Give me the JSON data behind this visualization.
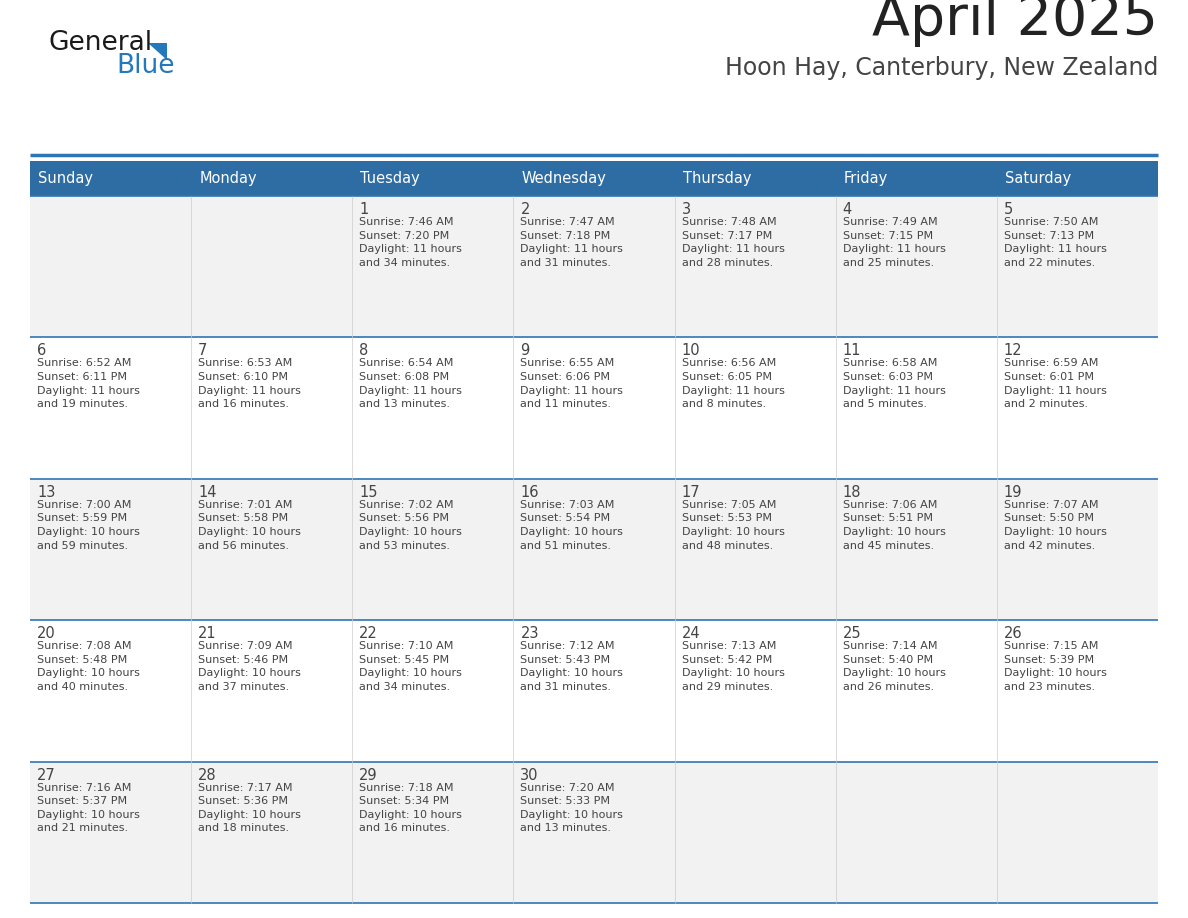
{
  "title": "April 2025",
  "subtitle": "Hoon Hay, Canterbury, New Zealand",
  "header_bg_color": "#2E6DA4",
  "header_text_color": "#FFFFFF",
  "title_color": "#222222",
  "subtitle_color": "#444444",
  "text_color": "#444444",
  "line_color": "#2E75B6",
  "logo_black": "#1a1a1a",
  "logo_blue": "#2479BD",
  "day_headers": [
    "Sunday",
    "Monday",
    "Tuesday",
    "Wednesday",
    "Thursday",
    "Friday",
    "Saturday"
  ],
  "weeks": [
    [
      {
        "day": "",
        "info": ""
      },
      {
        "day": "",
        "info": ""
      },
      {
        "day": "1",
        "info": "Sunrise: 7:46 AM\nSunset: 7:20 PM\nDaylight: 11 hours\nand 34 minutes."
      },
      {
        "day": "2",
        "info": "Sunrise: 7:47 AM\nSunset: 7:18 PM\nDaylight: 11 hours\nand 31 minutes."
      },
      {
        "day": "3",
        "info": "Sunrise: 7:48 AM\nSunset: 7:17 PM\nDaylight: 11 hours\nand 28 minutes."
      },
      {
        "day": "4",
        "info": "Sunrise: 7:49 AM\nSunset: 7:15 PM\nDaylight: 11 hours\nand 25 minutes."
      },
      {
        "day": "5",
        "info": "Sunrise: 7:50 AM\nSunset: 7:13 PM\nDaylight: 11 hours\nand 22 minutes."
      }
    ],
    [
      {
        "day": "6",
        "info": "Sunrise: 6:52 AM\nSunset: 6:11 PM\nDaylight: 11 hours\nand 19 minutes."
      },
      {
        "day": "7",
        "info": "Sunrise: 6:53 AM\nSunset: 6:10 PM\nDaylight: 11 hours\nand 16 minutes."
      },
      {
        "day": "8",
        "info": "Sunrise: 6:54 AM\nSunset: 6:08 PM\nDaylight: 11 hours\nand 13 minutes."
      },
      {
        "day": "9",
        "info": "Sunrise: 6:55 AM\nSunset: 6:06 PM\nDaylight: 11 hours\nand 11 minutes."
      },
      {
        "day": "10",
        "info": "Sunrise: 6:56 AM\nSunset: 6:05 PM\nDaylight: 11 hours\nand 8 minutes."
      },
      {
        "day": "11",
        "info": "Sunrise: 6:58 AM\nSunset: 6:03 PM\nDaylight: 11 hours\nand 5 minutes."
      },
      {
        "day": "12",
        "info": "Sunrise: 6:59 AM\nSunset: 6:01 PM\nDaylight: 11 hours\nand 2 minutes."
      }
    ],
    [
      {
        "day": "13",
        "info": "Sunrise: 7:00 AM\nSunset: 5:59 PM\nDaylight: 10 hours\nand 59 minutes."
      },
      {
        "day": "14",
        "info": "Sunrise: 7:01 AM\nSunset: 5:58 PM\nDaylight: 10 hours\nand 56 minutes."
      },
      {
        "day": "15",
        "info": "Sunrise: 7:02 AM\nSunset: 5:56 PM\nDaylight: 10 hours\nand 53 minutes."
      },
      {
        "day": "16",
        "info": "Sunrise: 7:03 AM\nSunset: 5:54 PM\nDaylight: 10 hours\nand 51 minutes."
      },
      {
        "day": "17",
        "info": "Sunrise: 7:05 AM\nSunset: 5:53 PM\nDaylight: 10 hours\nand 48 minutes."
      },
      {
        "day": "18",
        "info": "Sunrise: 7:06 AM\nSunset: 5:51 PM\nDaylight: 10 hours\nand 45 minutes."
      },
      {
        "day": "19",
        "info": "Sunrise: 7:07 AM\nSunset: 5:50 PM\nDaylight: 10 hours\nand 42 minutes."
      }
    ],
    [
      {
        "day": "20",
        "info": "Sunrise: 7:08 AM\nSunset: 5:48 PM\nDaylight: 10 hours\nand 40 minutes."
      },
      {
        "day": "21",
        "info": "Sunrise: 7:09 AM\nSunset: 5:46 PM\nDaylight: 10 hours\nand 37 minutes."
      },
      {
        "day": "22",
        "info": "Sunrise: 7:10 AM\nSunset: 5:45 PM\nDaylight: 10 hours\nand 34 minutes."
      },
      {
        "day": "23",
        "info": "Sunrise: 7:12 AM\nSunset: 5:43 PM\nDaylight: 10 hours\nand 31 minutes."
      },
      {
        "day": "24",
        "info": "Sunrise: 7:13 AM\nSunset: 5:42 PM\nDaylight: 10 hours\nand 29 minutes."
      },
      {
        "day": "25",
        "info": "Sunrise: 7:14 AM\nSunset: 5:40 PM\nDaylight: 10 hours\nand 26 minutes."
      },
      {
        "day": "26",
        "info": "Sunrise: 7:15 AM\nSunset: 5:39 PM\nDaylight: 10 hours\nand 23 minutes."
      }
    ],
    [
      {
        "day": "27",
        "info": "Sunrise: 7:16 AM\nSunset: 5:37 PM\nDaylight: 10 hours\nand 21 minutes."
      },
      {
        "day": "28",
        "info": "Sunrise: 7:17 AM\nSunset: 5:36 PM\nDaylight: 10 hours\nand 18 minutes."
      },
      {
        "day": "29",
        "info": "Sunrise: 7:18 AM\nSunset: 5:34 PM\nDaylight: 10 hours\nand 16 minutes."
      },
      {
        "day": "30",
        "info": "Sunrise: 7:20 AM\nSunset: 5:33 PM\nDaylight: 10 hours\nand 13 minutes."
      },
      {
        "day": "",
        "info": ""
      },
      {
        "day": "",
        "info": ""
      },
      {
        "day": "",
        "info": ""
      }
    ]
  ]
}
